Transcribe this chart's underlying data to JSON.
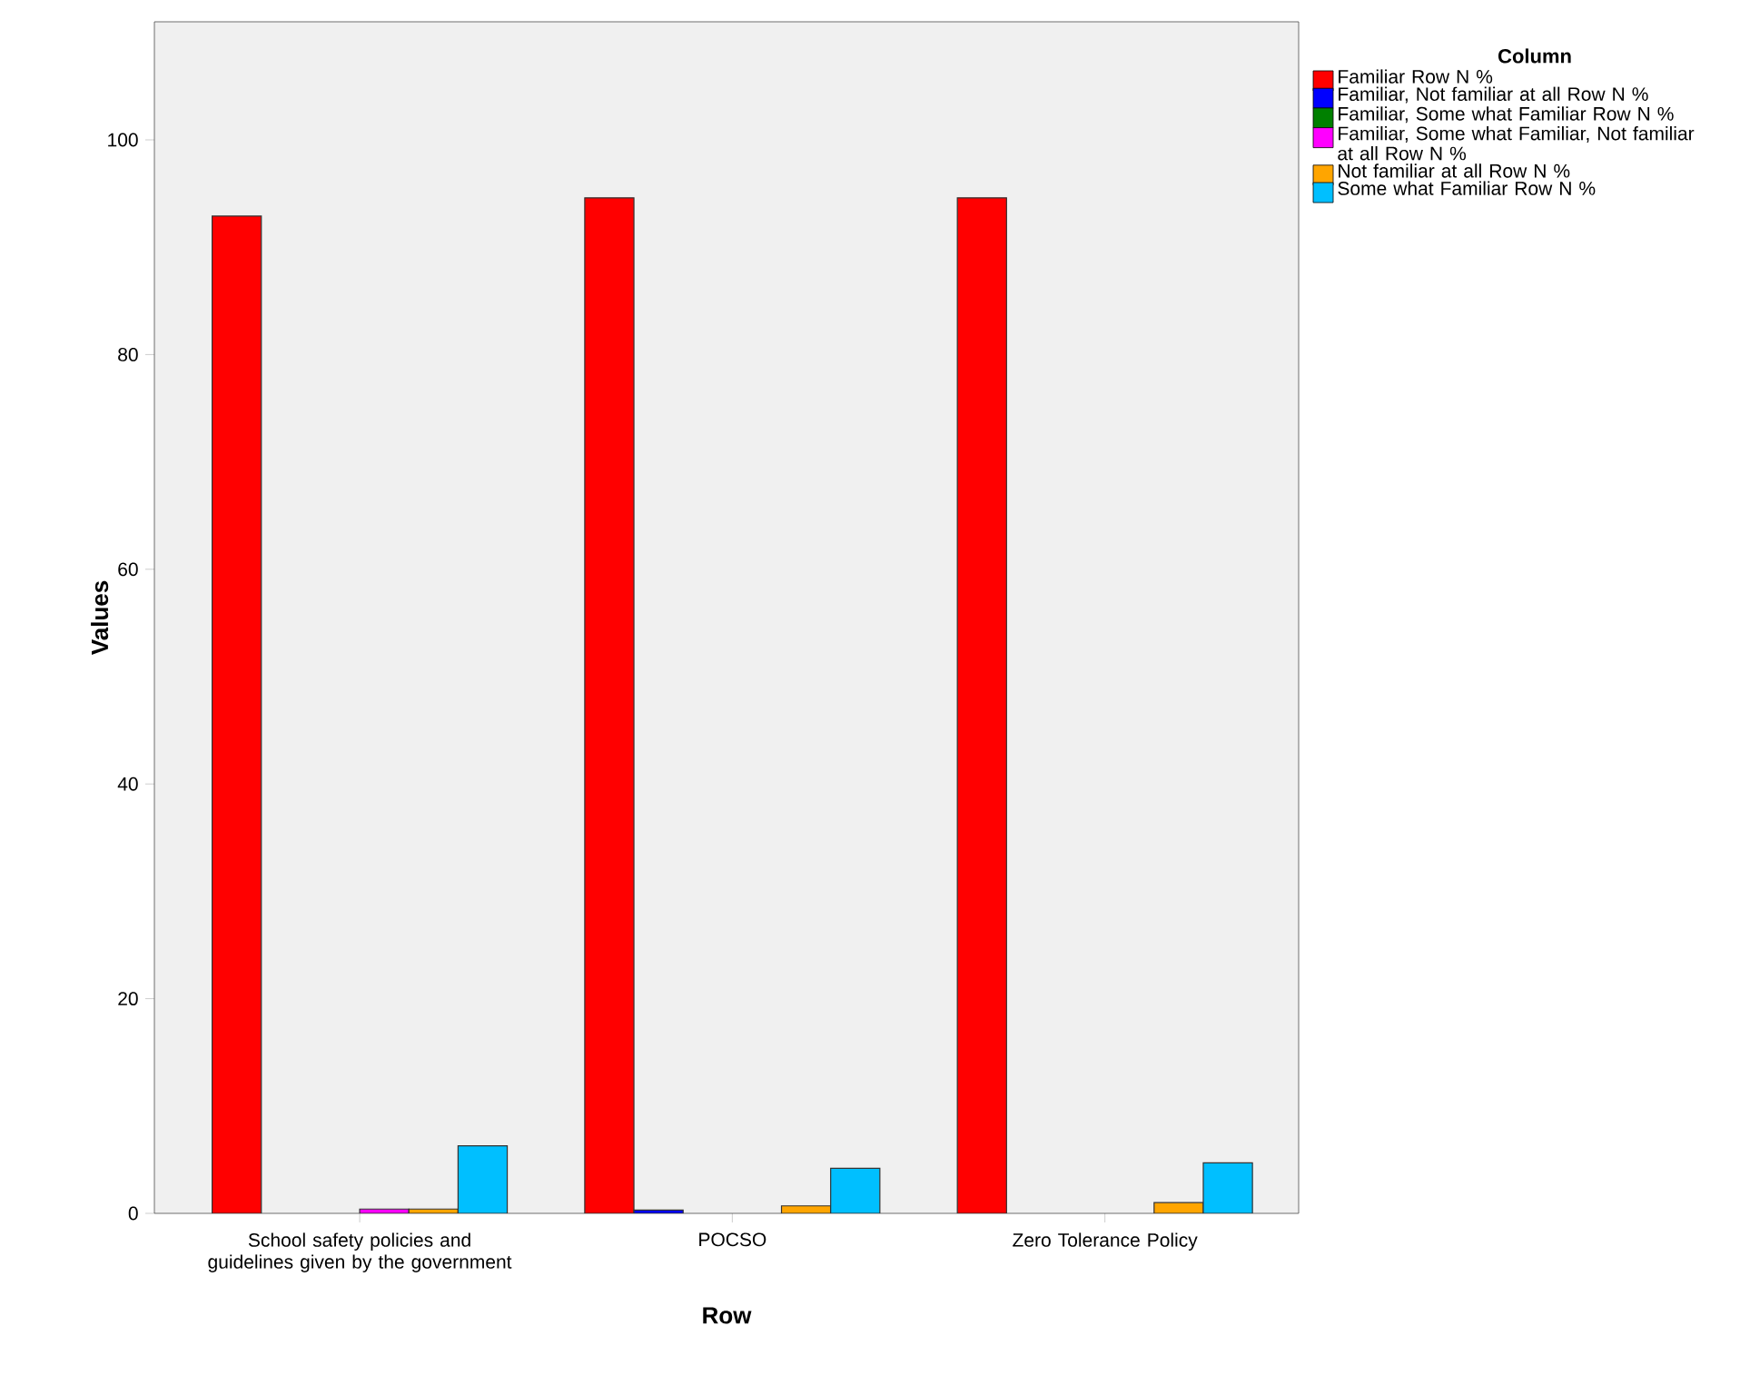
{
  "chart_data": {
    "type": "bar",
    "xlabel": "Row",
    "ylabel": "Values",
    "legend_title": "Column",
    "legend": "top right",
    "grid": false,
    "categories": [
      "School safety policies and guidelines given by the government",
      "POCSO",
      "Zero Tolerance Policy"
    ],
    "ylim": [
      0,
      111
    ],
    "yticks": [
      0,
      20,
      40,
      60,
      80,
      100
    ],
    "series": [
      {
        "name": "Familiar Row N %",
        "color": "#ff0000",
        "values": [
          92.9,
          94.6,
          94.6
        ]
      },
      {
        "name": "Familiar, Not familiar at all Row N %",
        "color": "#0000ff",
        "values": [
          null,
          0.3,
          null
        ]
      },
      {
        "name": "Familiar, Some what Familiar Row N %",
        "color": "#008000",
        "values": [
          null,
          null,
          null
        ]
      },
      {
        "name": "Familiar, Some what Familiar, Not familiar at all Row N %",
        "color": "#ff00ff",
        "values": [
          0.4,
          null,
          null
        ]
      },
      {
        "name": "Not familiar at all Row N %",
        "color": "#ffa500",
        "values": [
          0.4,
          0.7,
          1.0
        ]
      },
      {
        "name": "Some what Familiar Row N %",
        "color": "#00bfff",
        "values": [
          6.3,
          4.2,
          4.7
        ]
      }
    ]
  }
}
